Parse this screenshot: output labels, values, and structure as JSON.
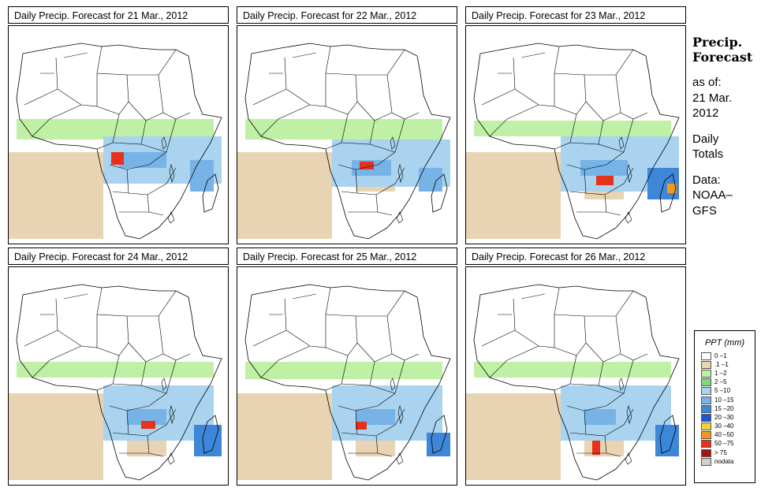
{
  "panels": [
    {
      "title": "Daily Precip. Forecast for  21 Mar., 2012"
    },
    {
      "title": "Daily Precip. Forecast for  22 Mar., 2012"
    },
    {
      "title": "Daily Precip. Forecast for  23 Mar., 2012"
    },
    {
      "title": "Daily Precip. Forecast for  24 Mar., 2012"
    },
    {
      "title": "Daily Precip. Forecast for  25 Mar., 2012"
    },
    {
      "title": "Daily Precip. Forecast for  26 Mar., 2012"
    }
  ],
  "side": {
    "heading_line1": "Precip.",
    "heading_line2": "Forecast",
    "asof_line1": "as of:",
    "asof_line2": "21 Mar.",
    "asof_line3": "2012",
    "daily_line1": "Daily",
    "daily_line2": "Totals",
    "data_line1": "Data:",
    "data_line2": "NOAA–",
    "data_line3": "GFS"
  },
  "legend": {
    "title": "PPT (mm)",
    "items": [
      {
        "label": "0 –1",
        "color": "#ffffff"
      },
      {
        "label": ".1 –1",
        "color": "#e8d3b3"
      },
      {
        "label": "1 –2",
        "color": "#bff0a6"
      },
      {
        "label": "2 –5",
        "color": "#7fdc7a"
      },
      {
        "label": "5 –10",
        "color": "#a9d3ee"
      },
      {
        "label": "10 –15",
        "color": "#77b3e6"
      },
      {
        "label": "15 –20",
        "color": "#3e86d8"
      },
      {
        "label": "20 –30",
        "color": "#1f56c9"
      },
      {
        "label": "30 –40",
        "color": "#f2d23a"
      },
      {
        "label": "40 –50",
        "color": "#f29a1e"
      },
      {
        "label": "50 –75",
        "color": "#e5321c"
      },
      {
        "label": "> 75",
        "color": "#a31510"
      },
      {
        "label": "nodata",
        "color": "#cfcfcf"
      }
    ]
  }
}
